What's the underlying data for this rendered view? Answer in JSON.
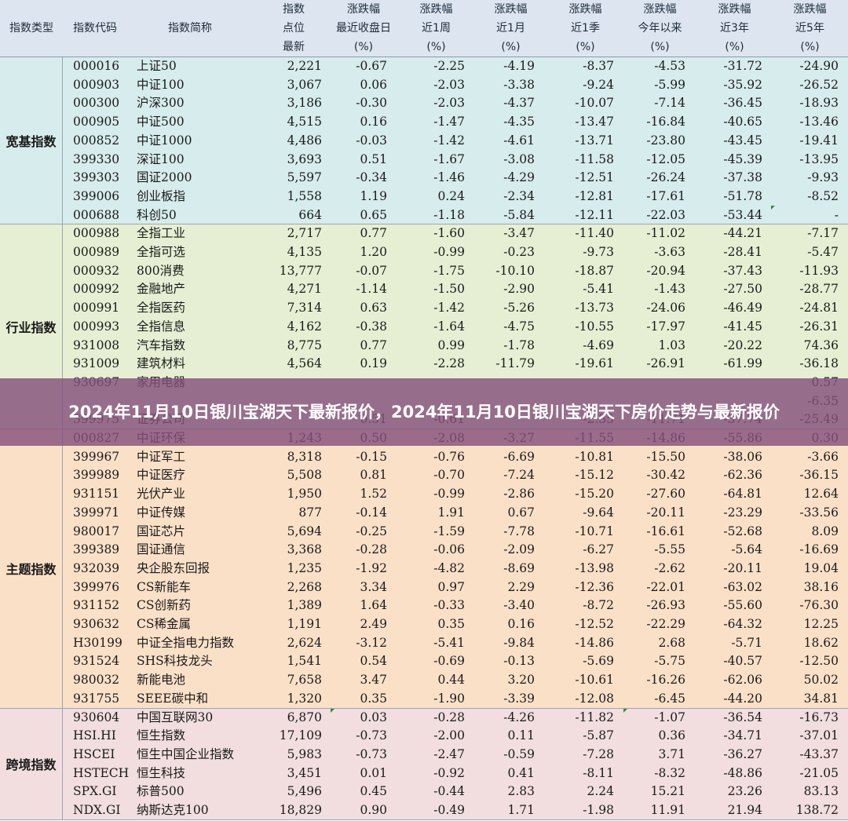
{
  "header": {
    "category": "指数类型",
    "code": "指数代码",
    "name": "指数简称",
    "points": [
      "指数",
      "点位",
      "最新"
    ],
    "day": [
      "涨跌幅",
      "最近收盘日",
      "(%)"
    ],
    "week": [
      "涨跌幅",
      "近1周",
      "(%)"
    ],
    "month": [
      "涨跌幅",
      "近1月",
      "(%)"
    ],
    "quarter": [
      "涨跌幅",
      "近1季",
      "(%)"
    ],
    "ytd": [
      "涨跌幅",
      "今年以来",
      "(%)"
    ],
    "y3": [
      "涨跌幅",
      "近3年",
      "(%)"
    ],
    "y5": [
      "涨跌幅",
      "近5年",
      "(%)"
    ]
  },
  "groups": [
    {
      "label": "宽基指数",
      "color": "#d7ecec",
      "rows": [
        [
          "000016",
          "上证50",
          "2,221",
          "-0.67",
          "-2.25",
          "-4.19",
          "-8.37",
          "-4.53",
          "-31.72",
          "-24.90"
        ],
        [
          "000903",
          "中证100",
          "3,067",
          "0.06",
          "-2.03",
          "-3.38",
          "-9.24",
          "-5.99",
          "-35.92",
          "-26.52"
        ],
        [
          "000300",
          "沪深300",
          "3,186",
          "-0.30",
          "-2.03",
          "-4.37",
          "-10.07",
          "-7.14",
          "-36.45",
          "-18.93"
        ],
        [
          "000905",
          "中证500",
          "4,515",
          "0.16",
          "-1.47",
          "-4.35",
          "-13.47",
          "-16.84",
          "-40.65",
          "-13.46"
        ],
        [
          "000852",
          "中证1000",
          "4,486",
          "-0.03",
          "-1.42",
          "-4.61",
          "-13.71",
          "-23.80",
          "-43.45",
          "-19.41"
        ],
        [
          "399330",
          "深证100",
          "3,693",
          "0.51",
          "-1.67",
          "-3.08",
          "-11.58",
          "-12.05",
          "-45.39",
          "-13.95"
        ],
        [
          "399303",
          "国证2000",
          "5,597",
          "-0.34",
          "-1.46",
          "-4.29",
          "-12.51",
          "-26.24",
          "-37.38",
          "-9.93"
        ],
        [
          "399006",
          "创业板指",
          "1,558",
          "1.19",
          "0.24",
          "-2.34",
          "-12.81",
          "-17.61",
          "-51.78",
          "-8.52"
        ],
        [
          "000688",
          "科创50",
          "664",
          "0.65",
          "-1.18",
          "-5.84",
          "-12.11",
          "-22.03",
          "-53.44",
          "-"
        ]
      ]
    },
    {
      "label": "行业指数",
      "color": "#e6efd3",
      "rows": [
        [
          "000988",
          "全指工业",
          "2,717",
          "0.77",
          "-1.60",
          "-3.47",
          "-11.40",
          "-11.02",
          "-44.21",
          "-7.17"
        ],
        [
          "000989",
          "全指可选",
          "4,135",
          "1.20",
          "-0.99",
          "-0.23",
          "-9.73",
          "-3.63",
          "-28.41",
          "-5.47"
        ],
        [
          "000932",
          "800消费",
          "13,777",
          "-0.07",
          "-1.75",
          "-10.10",
          "-18.87",
          "-20.94",
          "-37.43",
          "-11.93"
        ],
        [
          "000992",
          "金融地产",
          "4,271",
          "-1.14",
          "-1.50",
          "-2.90",
          "-5.41",
          "-1.43",
          "-27.50",
          "-28.77"
        ],
        [
          "000991",
          "全指医药",
          "7,314",
          "0.63",
          "-1.42",
          "-5.26",
          "-13.73",
          "-24.06",
          "-46.49",
          "-24.81"
        ],
        [
          "000993",
          "全指信息",
          "4,162",
          "-0.38",
          "-1.64",
          "-4.75",
          "-10.55",
          "-17.97",
          "-41.45",
          "-26.31"
        ],
        [
          "931008",
          "汽车指数",
          "8,775",
          "0.77",
          "0.99",
          "-1.78",
          "-4.69",
          "1.03",
          "-20.22",
          "74.36"
        ],
        [
          "931009",
          "建筑材料",
          "4,564",
          "0.19",
          "-2.28",
          "-11.79",
          "-19.61",
          "-26.91",
          "-61.99",
          "-36.18"
        ],
        [
          "930697",
          "家用电器",
          "",
          "",
          "",
          "",
          "",
          "",
          "",
          "0.57"
        ],
        [
          "",
          "",
          "",
          "",
          "",
          "",
          "",
          "",
          "",
          "-6.35"
        ],
        [
          "399975",
          "证券公司",
          "",
          "0.51",
          "-0.61",
          "",
          "-2.35",
          "-11.71",
          "-37.74",
          "-25.49"
        ]
      ]
    },
    {
      "label": "主题指数",
      "color": "#fbe0c8",
      "rows": [
        [
          "000827",
          "中证环保",
          "1,243",
          "0.50",
          "-2.08",
          "-3.27",
          "-11.55",
          "-14.86",
          "-55.86",
          "0.30"
        ],
        [
          "399967",
          "中证军工",
          "8,318",
          "-0.15",
          "-0.76",
          "-6.69",
          "-10.81",
          "-15.50",
          "-38.06",
          "-3.66"
        ],
        [
          "399989",
          "中证医疗",
          "5,508",
          "0.81",
          "-0.70",
          "-7.24",
          "-15.12",
          "-30.42",
          "-62.36",
          "-36.15"
        ],
        [
          "931151",
          "光伏产业",
          "1,950",
          "1.52",
          "-0.99",
          "-2.86",
          "-15.20",
          "-27.60",
          "-64.81",
          "12.64"
        ],
        [
          "399971",
          "中证传媒",
          "877",
          "-0.14",
          "1.91",
          "0.67",
          "-9.64",
          "-20.11",
          "-23.29",
          "-33.56"
        ],
        [
          "980017",
          "国证芯片",
          "5,694",
          "-0.25",
          "-1.59",
          "-7.78",
          "-10.71",
          "-16.61",
          "-52.68",
          "8.09"
        ],
        [
          "399389",
          "国证通信",
          "3,368",
          "-0.28",
          "-0.06",
          "-2.09",
          "-6.27",
          "-5.55",
          "-5.64",
          "-16.69"
        ],
        [
          "932039",
          "央企股东回报",
          "1,235",
          "-1.92",
          "-4.82",
          "-8.69",
          "-13.98",
          "-2.62",
          "-20.11",
          "19.04"
        ],
        [
          "399976",
          "CS新能车",
          "2,268",
          "3.34",
          "0.97",
          "2.29",
          "-12.36",
          "-22.01",
          "-63.02",
          "38.16"
        ],
        [
          "931152",
          "CS创新药",
          "1,389",
          "1.64",
          "-0.33",
          "-3.40",
          "-8.72",
          "-26.93",
          "-55.60",
          "-76.30"
        ],
        [
          "930632",
          "CS稀金属",
          "1,191",
          "2.49",
          "0.35",
          "0.16",
          "-12.52",
          "-22.29",
          "-64.32",
          "12.25"
        ],
        [
          "H30199",
          "中证全指电力指数",
          "2,624",
          "-3.12",
          "-5.41",
          "-9.84",
          "-14.86",
          "2.68",
          "-5.71",
          "18.62"
        ],
        [
          "931524",
          "SHS科技龙头",
          "1,541",
          "0.54",
          "-0.69",
          "-0.13",
          "-5.69",
          "-5.75",
          "-40.57",
          "-12.50"
        ],
        [
          "980032",
          "新能电池",
          "7,658",
          "3.47",
          "0.44",
          "3.20",
          "-10.61",
          "-16.26",
          "-62.06",
          "50.02"
        ],
        [
          "931755",
          "SEEE碳中和",
          "1,320",
          "0.35",
          "-1.90",
          "-3.39",
          "-12.08",
          "-6.45",
          "-44.20",
          "34.81"
        ]
      ]
    },
    {
      "label": "跨境指数",
      "color": "#f2dede",
      "rows": [
        [
          "930604",
          "中国互联网30",
          "6,870",
          "0.03",
          "-0.28",
          "-4.26",
          "-11.82",
          "-1.07",
          "-36.54",
          "-16.73"
        ],
        [
          "HSI.HI",
          "恒生指数",
          "17,109",
          "-0.73",
          "-2.00",
          "0.11",
          "-5.87",
          "0.36",
          "-34.71",
          "-37.01"
        ],
        [
          "HSCEI",
          "恒生中国企业指数",
          "5,983",
          "-0.73",
          "-2.47",
          "-0.59",
          "-7.28",
          "3.71",
          "-36.27",
          "-43.37"
        ],
        [
          "HSTECH",
          "恒生科技",
          "3,451",
          "0.01",
          "-0.92",
          "0.41",
          "-8.11",
          "-8.32",
          "-48.86",
          "-21.05"
        ],
        [
          "SPX.GI",
          "标普500",
          "5,496",
          "0.45",
          "-0.44",
          "2.83",
          "2.24",
          "15.21",
          "23.26",
          "83.13"
        ],
        [
          "NDX.GI",
          "纳斯达克100",
          "18,829",
          "0.90",
          "-0.49",
          "1.71",
          "-1.98",
          "11.91",
          "21.94",
          "138.72"
        ]
      ]
    }
  ],
  "banner": {
    "title": "2024年11月10日银川宝湖天下最新报价，2024年11月10日银川宝湖天下房价走势与最新报价"
  }
}
